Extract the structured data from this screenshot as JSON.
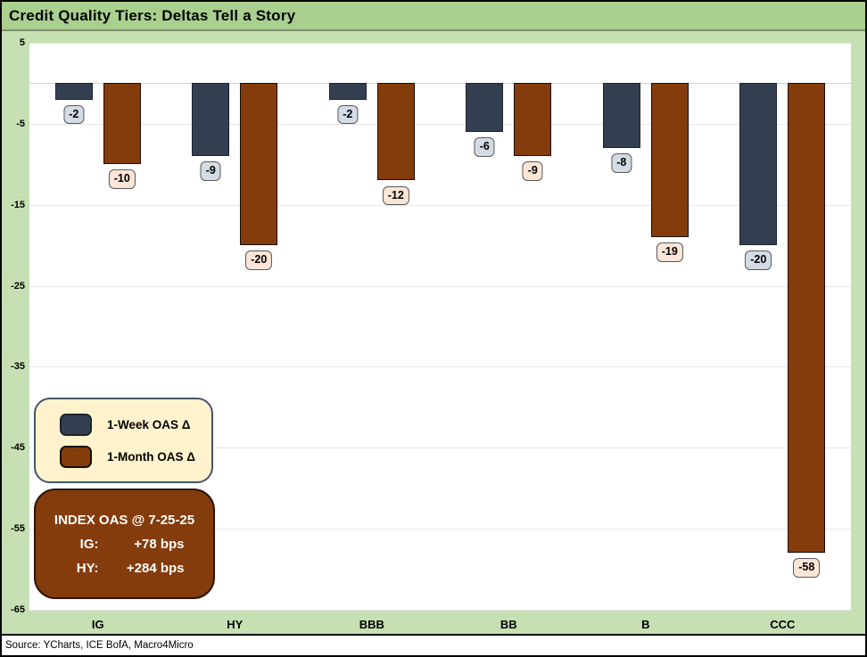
{
  "title": "Credit Quality Tiers: Deltas Tell a Story",
  "source": "Source: YCharts, ICE BofA, Macro4Micro",
  "colors": {
    "frame_border": "#000000",
    "title_bar_bg": "#a9d08e",
    "chart_bg": "#c6e0b4",
    "plot_bg": "#ffffff",
    "gridline": "#e6e6e6",
    "week_bar": "#333f50",
    "month_bar": "#843c0c",
    "week_label_bg": "#d3dbe5",
    "month_label_bg": "#fbe5d6",
    "data_label_border": "#595959",
    "legend_bg": "#fff2cc",
    "legend_border": "#44546a",
    "index_box_bg": "#843c0c",
    "index_box_text": "#ffffff"
  },
  "chart_data": {
    "type": "bar",
    "title": "Credit Quality Tiers: Deltas Tell a Story",
    "categories": [
      "IG",
      "HY",
      "BBB",
      "BB",
      "B",
      "CCC"
    ],
    "series": [
      {
        "name": "1-Week OAS Δ",
        "values": [
          -2,
          -9,
          -2,
          -6,
          -8,
          -20
        ],
        "color": "#333f50",
        "border": "#1c232d",
        "label_bg": "#d3dbe5"
      },
      {
        "name": "1-Month OAS Δ",
        "values": [
          -10,
          -20,
          -12,
          -9,
          -19,
          -58
        ],
        "color": "#843c0c",
        "border": "#1a0d04",
        "label_bg": "#fbe5d6"
      }
    ],
    "xlabel": "",
    "ylabel": "",
    "ylim": [
      -65,
      5
    ],
    "yticks": [
      5,
      -5,
      -15,
      -25,
      -35,
      -45,
      -55,
      -65
    ],
    "ytick_interval": 10,
    "grid": true,
    "data_labels": true,
    "legend_position": "inside-bottom-left"
  },
  "legend": {
    "items": [
      {
        "label": "1-Week OAS Δ"
      },
      {
        "label": "1-Month OAS Δ"
      }
    ]
  },
  "index_box": {
    "title": "INDEX OAS @ 7-25-25",
    "rows": [
      {
        "label": "IG:",
        "value": "+78 bps"
      },
      {
        "label": "HY:",
        "value": "+284 bps"
      }
    ]
  }
}
